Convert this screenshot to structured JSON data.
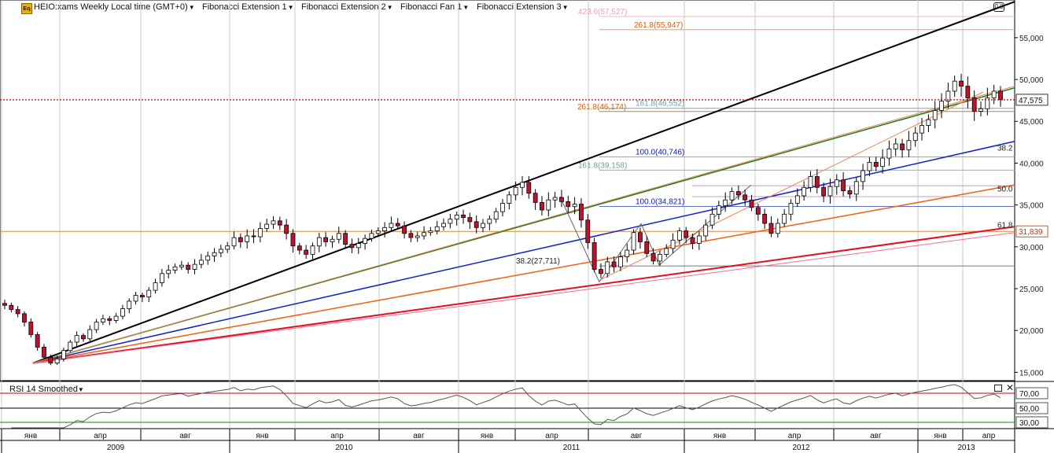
{
  "toolbar": {
    "symbol_label": "HEIO:xams Weekly Local time (GMT+0)",
    "tools": [
      "Fibonacci Extension 1",
      "Fibonacci Extension 2",
      "Fibonacci Fan 1",
      "Fibonacci Extension 3"
    ]
  },
  "colors": {
    "up_candle": "#ffffff",
    "down_candle": "#c0122c",
    "current_price_line": "#c00000",
    "fan_black": "#000000",
    "fan_green": "#1a7a1a",
    "fan_blue": "#1020c8",
    "fan_orange": "#f06010",
    "fan_red": "#e01020",
    "rsi_line": "#555555"
  },
  "chart_data": {
    "type": "candlestick",
    "title": "HEIO:xams Weekly",
    "timeframe": "Weekly",
    "ylim": [
      14000,
      59500
    ],
    "yticks": [
      15000,
      20000,
      25000,
      30000,
      35000,
      40000,
      45000,
      50000,
      55000
    ],
    "ytick_labels": [
      "15,000",
      "20,000",
      "25,000",
      "30,000",
      "35,000",
      "40,000",
      "45,000",
      "50,000",
      "55,000"
    ],
    "x_month_labels": [
      "янв",
      "апр",
      "авг",
      "янв",
      "апр",
      "авг",
      "янв",
      "апр",
      "авг",
      "янв",
      "апр",
      "авг",
      "янв",
      "апр"
    ],
    "x_year_labels": [
      "2009",
      "2010",
      "2011",
      "2012",
      "2013"
    ],
    "last_price": 47575,
    "last_price_label": "47,575",
    "horizontal_level_label": "31,839",
    "horizontal_level": 31839,
    "close_series": [
      23000,
      22500,
      22000,
      21000,
      19500,
      18000,
      16800,
      16100,
      16600,
      17600,
      18600,
      19400,
      19000,
      20100,
      21000,
      21400,
      21200,
      21700,
      22600,
      23500,
      24200,
      24000,
      24800,
      25700,
      26800,
      27200,
      27600,
      27800,
      27300,
      27900,
      28400,
      28900,
      29300,
      29700,
      30100,
      31100,
      30600,
      31300,
      31200,
      32200,
      32700,
      33100,
      32600,
      31600,
      30100,
      29600,
      29100,
      30100,
      31100,
      30600,
      30900,
      31600,
      30300,
      29900,
      30400,
      31000,
      31600,
      31900,
      32300,
      32800,
      32500,
      31600,
      31100,
      31300,
      31700,
      31900,
      32400,
      32800,
      33300,
      33800,
      33500,
      33000,
      32300,
      32800,
      33300,
      34200,
      35200,
      36200,
      37100,
      37700,
      36400,
      35300,
      34400,
      35600,
      35900,
      35400,
      34800,
      35100,
      33200,
      30500,
      27300,
      26800,
      28200,
      27600,
      28800,
      29600,
      31700,
      30600,
      29200,
      28300,
      29100,
      29800,
      30800,
      31900,
      31100,
      30400,
      31300,
      32600,
      33900,
      34900,
      35600,
      36600,
      36200,
      35600,
      34700,
      33900,
      32800,
      31600,
      32800,
      33900,
      35200,
      36100,
      37100,
      38400,
      37100,
      36100,
      37200,
      38000,
      36700,
      36300,
      37800,
      39100,
      40100,
      39600,
      40600,
      41700,
      42300,
      41600,
      42700,
      43600,
      44500,
      45200,
      46300,
      47400,
      48600,
      49800,
      49200,
      47800,
      46200,
      46500,
      47800,
      48600,
      47575
    ],
    "rsi": {
      "title": "RSI 14 Smoothed",
      "levels": [
        70,
        50,
        30
      ],
      "level_labels": [
        "70,00",
        "50,00",
        "30,00"
      ]
    },
    "fibonacci_labels": [
      {
        "text": "423.6(57,527)",
        "price": 57527
      },
      {
        "text": "261.8(55,947)",
        "price": 55947
      },
      {
        "text": "261.8(46,174)",
        "price": 46174
      },
      {
        "text": "161.8(46,552)",
        "price": 46552
      },
      {
        "text": "100.0(40,746)",
        "price": 40746
      },
      {
        "text": "161.8(39,158)",
        "price": 39158
      },
      {
        "text": "100.0(34,821)",
        "price": 34821
      },
      {
        "text": "38.2(27,711)",
        "price": 27711
      }
    ],
    "fan_labels": [
      "38.2",
      "50.0",
      "61.8"
    ],
    "corner_label": "0.0"
  }
}
